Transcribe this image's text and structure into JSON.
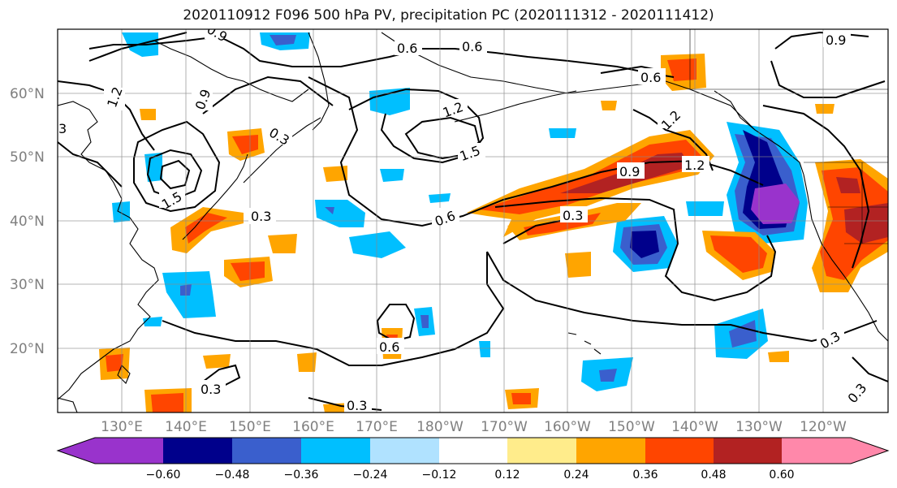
{
  "title": "2020110912 F096 500 hPa PV, precipitation PC (2020111312 - 2020111412)",
  "map": {
    "lon_ticks": [
      "130°E",
      "140°E",
      "150°E",
      "160°E",
      "170°E",
      "180°W",
      "170°W",
      "160°W",
      "150°W",
      "140°W",
      "130°W",
      "120°W"
    ],
    "lat_ticks": [
      "60°N",
      "50°N",
      "40°N",
      "30°N",
      "20°N"
    ],
    "contour_labels": [
      {
        "text": "0.9",
        "rot": 30
      },
      {
        "text": "0.6",
        "rot": 0
      },
      {
        "text": "0.6",
        "rot": 0
      },
      {
        "text": "0.6",
        "rot": 0
      },
      {
        "text": "0.9",
        "rot": 0
      },
      {
        "text": "1.2",
        "rot": -70
      },
      {
        "text": "0.9",
        "rot": -70
      },
      {
        "text": "0.3",
        "rot": 30
      },
      {
        "text": "1.2",
        "rot": -20
      },
      {
        "text": "1.2",
        "rot": -45
      },
      {
        "text": "1.5",
        "rot": -20
      },
      {
        "text": "0.9",
        "rot": 0
      },
      {
        "text": "1.2",
        "rot": 0
      },
      {
        "text": "1.5",
        "rot": -30
      },
      {
        "text": "0.3",
        "rot": 0
      },
      {
        "text": "0.6",
        "rot": -20
      },
      {
        "text": "0.3",
        "rot": 0
      },
      {
        "text": "0.6",
        "rot": 0
      },
      {
        "text": "0.3",
        "rot": 0
      },
      {
        "text": "0.3",
        "rot": 0
      },
      {
        "text": "0.3",
        "rot": -30
      },
      {
        "text": "0.3",
        "rot": -50
      },
      {
        "text": "3",
        "rot": 0
      }
    ]
  },
  "colorbar": {
    "tick_labels": [
      "−0.60",
      "−0.48",
      "−0.36",
      "−0.24",
      "−0.12",
      "0.12",
      "0.24",
      "0.36",
      "0.48",
      "0.60"
    ],
    "colors": [
      "#9933cc",
      "#00008b",
      "#3a5fcd",
      "#00bfff",
      "#b0e2ff",
      "#ffffff",
      "#ffec8b",
      "#ffa500",
      "#ff4500",
      "#b22222",
      "#ff88aa"
    ]
  }
}
